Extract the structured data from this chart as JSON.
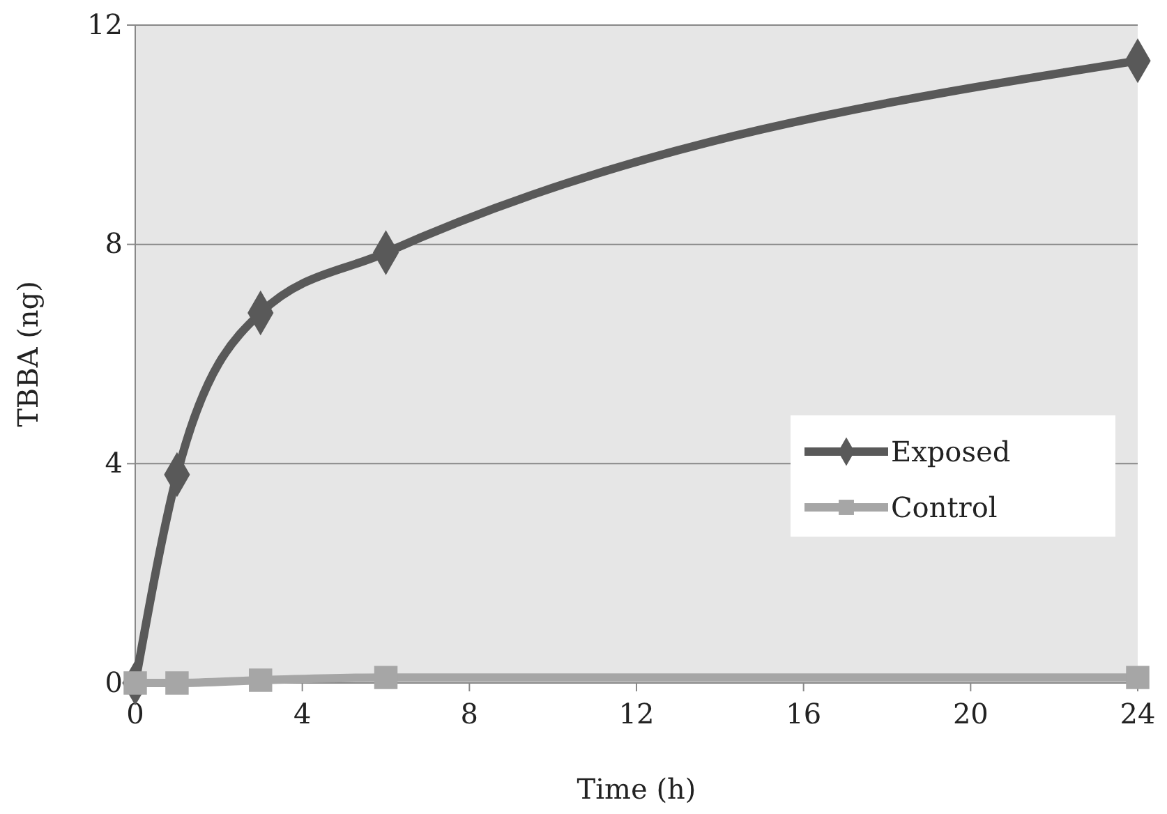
{
  "chart_data": {
    "type": "line",
    "xlabel": "Time (h)",
    "ylabel": "TBBA (ng)",
    "x": [
      0,
      1,
      3,
      6,
      24
    ],
    "series": [
      {
        "name": "Exposed",
        "color": "#595959",
        "marker": "diamond",
        "values": [
          0,
          3.8,
          6.75,
          7.85,
          11.35
        ]
      },
      {
        "name": "Control",
        "color": "#a6a6a6",
        "marker": "square",
        "values": [
          0,
          0,
          0.05,
          0.1,
          0.1
        ]
      }
    ],
    "xlim": [
      0,
      24
    ],
    "xticks": [
      0,
      4,
      8,
      12,
      16,
      20,
      24
    ],
    "ylim": [
      0,
      12
    ],
    "yticks": [
      0,
      4,
      8,
      12
    ],
    "grid": "y",
    "legend": "right",
    "line_style": "solid"
  }
}
